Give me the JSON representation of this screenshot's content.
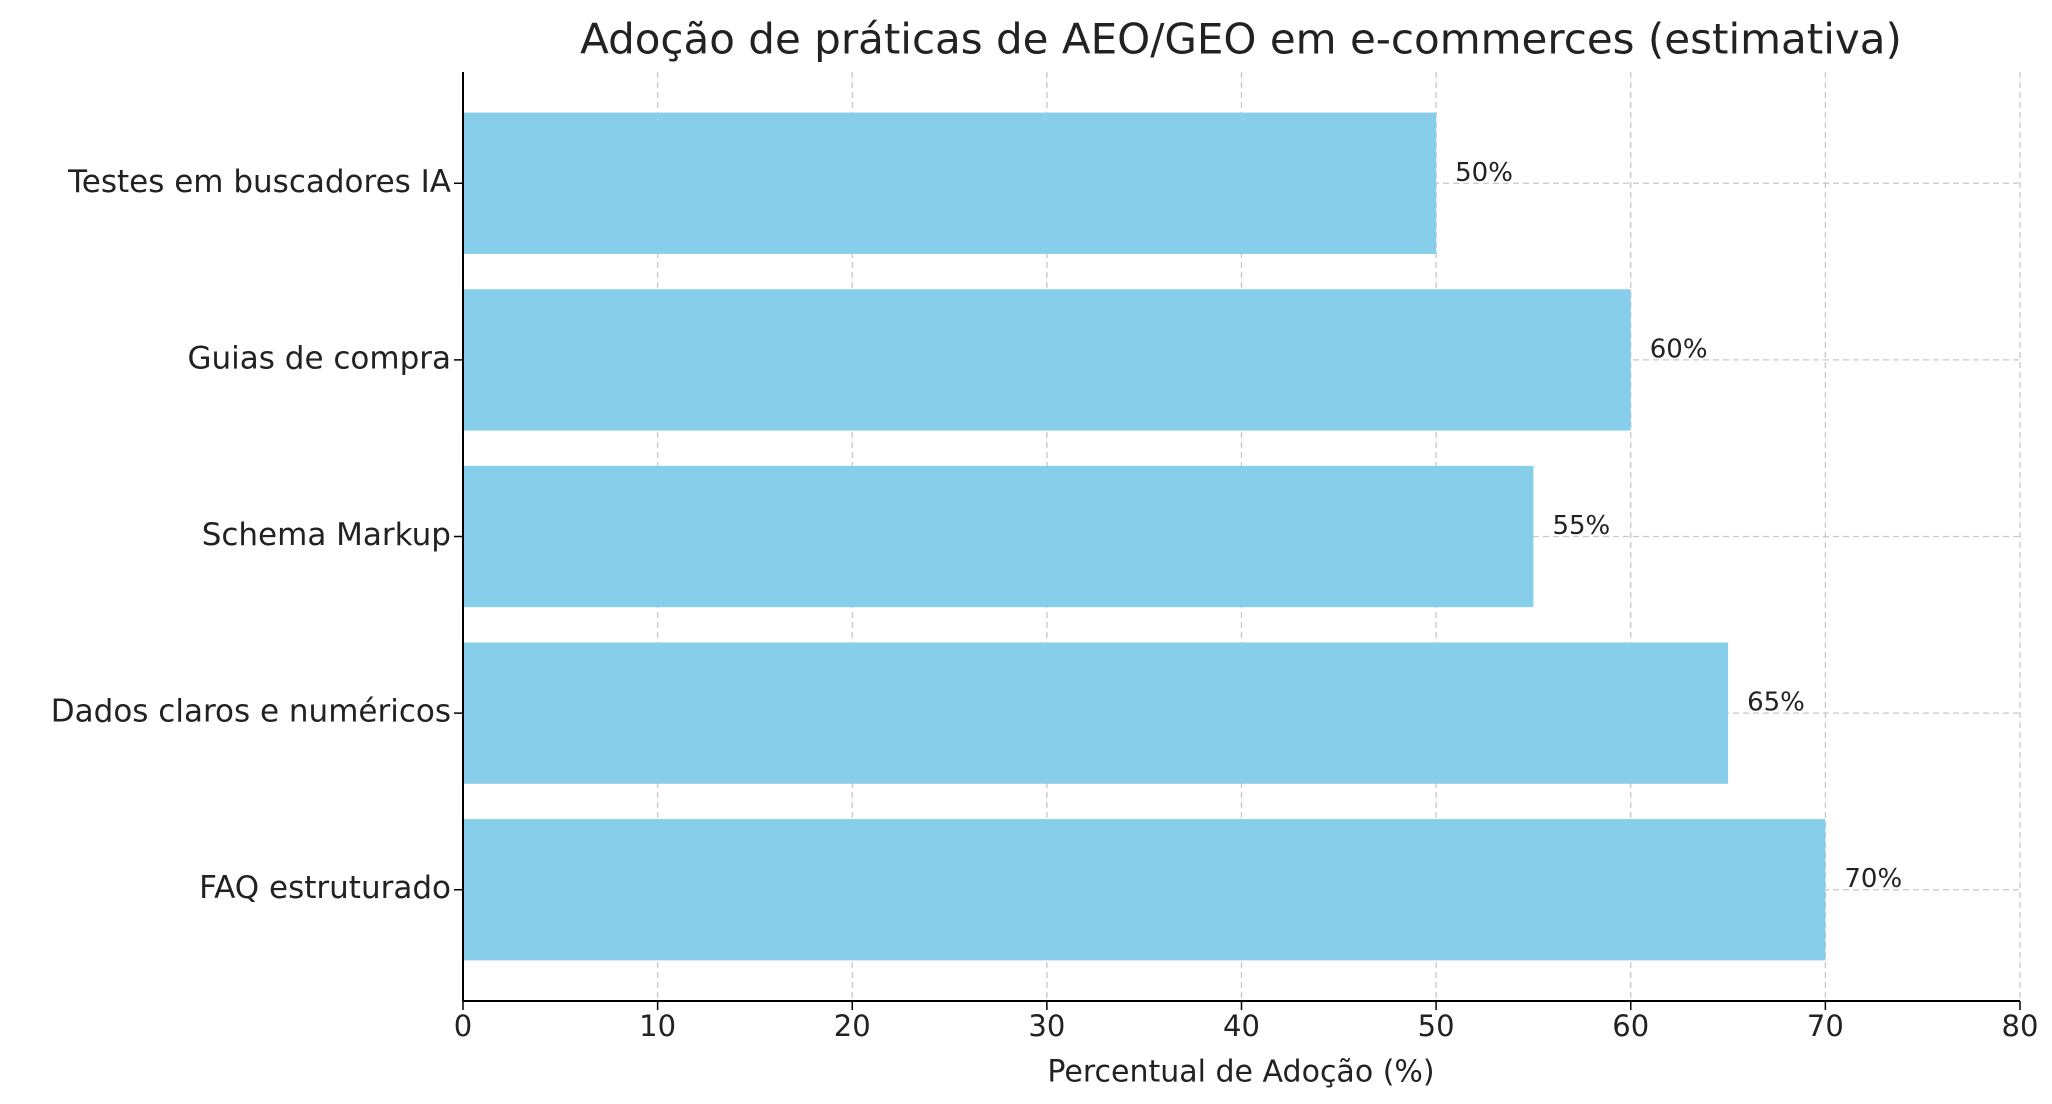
{
  "chart_data": {
    "type": "barh",
    "title": "Adoção de práticas de AEO/GEO em e-commerces (estimativa)",
    "x_label": "Percentual de Adoção (%)",
    "categories": [
      "FAQ estruturado",
      "Dados claros e numéricos",
      "Schema Markup",
      "Guias de compra",
      "Testes em buscadores IA"
    ],
    "values": [
      70,
      65,
      55,
      60,
      50
    ],
    "value_labels": [
      "70%",
      "65%",
      "55%",
      "60%",
      "50%"
    ],
    "color": "#87ceeb",
    "xlim": [
      0,
      80
    ],
    "xticks": [
      0,
      10,
      20,
      30,
      40,
      50,
      60,
      70,
      80
    ],
    "grid": true
  }
}
